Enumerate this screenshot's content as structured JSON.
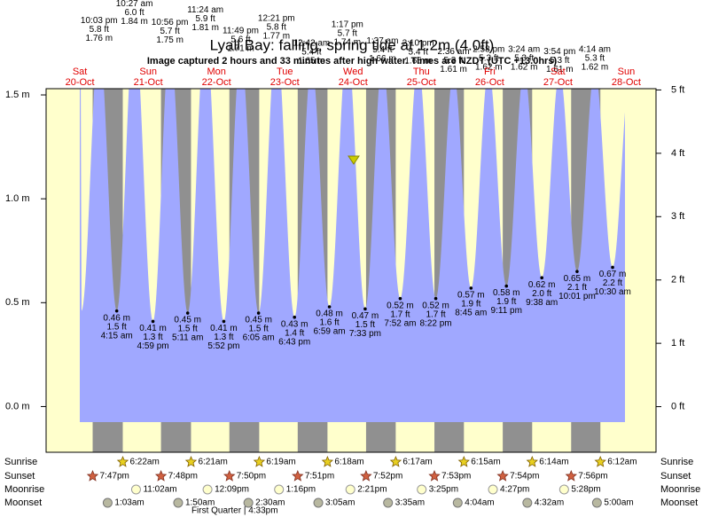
{
  "chart_data": {
    "type": "tide",
    "title": "Lyall Bay: falling, spring tide at 1.2m (4.0ft)",
    "subtitle": "Image captured 2 hours and 33 minutes after high water. Times are NZDT (UTC +13.0hrs)",
    "ylim": [
      -0.22,
      1.53
    ],
    "yticks": [
      {
        "value": 0,
        "label": "0.0 m"
      },
      {
        "value": 0.5,
        "label": "0.5 m"
      },
      {
        "value": 1,
        "label": "1.0 m"
      },
      {
        "value": 1.5,
        "label": "1.5 m"
      }
    ],
    "y2lim": [
      -0.72,
      5.02
    ],
    "y2ticks": [
      {
        "value": 0,
        "label": "0 ft"
      },
      {
        "value": 1,
        "label": "1 ft"
      },
      {
        "value": 2,
        "label": "2 ft"
      },
      {
        "value": 3,
        "label": "3 ft"
      },
      {
        "value": 4,
        "label": "4 ft"
      },
      {
        "value": 5,
        "label": "5 ft"
      }
    ],
    "row_labels": {
      "sunrise": "Sunrise",
      "sunset": "Sunset",
      "moonrise": "Moonrise",
      "moonset": "Moonset"
    },
    "days": [
      {
        "weekday": "Sat",
        "date": "20-Oct",
        "tides": [
          {
            "time": "10:03 pm",
            "m": 1.76,
            "m_label": "1.76 m",
            "ft_label": "5.8 ft"
          }
        ],
        "sunset": "7:47pm"
      },
      {
        "weekday": "Sun",
        "date": "21-Oct",
        "tides": [
          {
            "time": "4:15 am",
            "m": 0.46,
            "m_label": "0.46 m",
            "ft_label": "1.5 ft"
          },
          {
            "time": "10:27 am",
            "m": 1.84,
            "m_label": "1.84 m",
            "ft_label": "6.0 ft"
          },
          {
            "time": "4:59 pm",
            "m": 0.41,
            "m_label": "0.41 m",
            "ft_label": "1.3 ft"
          },
          {
            "time": "10:56 pm",
            "m": 1.75,
            "m_label": "1.75 m",
            "ft_label": "5.7 ft"
          }
        ],
        "sunrise": "6:22am",
        "sunset": "7:48pm",
        "moonrise": "11:02am",
        "moonset": "1:03am"
      },
      {
        "weekday": "Mon",
        "date": "22-Oct",
        "tides": [
          {
            "time": "5:11 am",
            "m": 0.45,
            "m_label": "0.45 m",
            "ft_label": "1.5 ft"
          },
          {
            "time": "11:24 am",
            "m": 1.81,
            "m_label": "1.81 m",
            "ft_label": "5.9 ft"
          },
          {
            "time": "5:52 pm",
            "m": 0.41,
            "m_label": "0.41 m",
            "ft_label": "1.3 ft"
          },
          {
            "time": "11:49 pm",
            "m": 1.71,
            "m_label": "1.71 m",
            "ft_label": "5.6 ft"
          }
        ],
        "sunrise": "6:21am",
        "sunset": "7:50pm",
        "moonrise": "12:09pm",
        "moonset": "1:50am",
        "moon_phase": "First Quarter | 4:33pm"
      },
      {
        "weekday": "Tue",
        "date": "23-Oct",
        "tides": [
          {
            "time": "6:05 am",
            "m": 0.45,
            "m_label": "0.45 m",
            "ft_label": "1.5 ft"
          },
          {
            "time": "12:21 pm",
            "m": 1.77,
            "m_label": "1.77 m",
            "ft_label": "5.8 ft"
          },
          {
            "time": "6:43 pm",
            "m": 0.43,
            "m_label": "0.43 m",
            "ft_label": "1.4 ft"
          }
        ],
        "sunrise": "6:19am",
        "sunset": "7:51pm",
        "moonrise": "1:16pm",
        "moonset": "2:30am"
      },
      {
        "weekday": "Wed",
        "date": "24-Oct",
        "tides": [
          {
            "time": "12:42 am",
            "m": 1.65,
            "m_label": "1.65 m",
            "ft_label": "5.4 ft"
          },
          {
            "time": "6:59 am",
            "m": 0.48,
            "m_label": "0.48 m",
            "ft_label": "1.6 ft"
          },
          {
            "time": "1:17 pm",
            "m": 1.74,
            "m_label": "1.74 m",
            "ft_label": "5.7 ft"
          },
          {
            "time": "7:33 pm",
            "m": 0.47,
            "m_label": "0.47 m",
            "ft_label": "1.5 ft"
          }
        ],
        "sunrise": "6:18am",
        "sunset": "7:52pm",
        "moonrise": "2:21pm",
        "moonset": "3:05am"
      },
      {
        "weekday": "Thu",
        "date": "25-Oct",
        "tides": [
          {
            "time": "1:37 am",
            "m": 1.66,
            "m_label": "1.66 m",
            "ft_label": "5.4 ft"
          },
          {
            "time": "7:52 am",
            "m": 0.52,
            "m_label": "0.52 m",
            "ft_label": "1.7 ft"
          },
          {
            "time": "2:10 pm",
            "m": 1.65,
            "m_label": "1.65 m",
            "ft_label": "5.4 ft"
          },
          {
            "time": "8:22 pm",
            "m": 0.52,
            "m_label": "0.52 m",
            "ft_label": "1.7 ft"
          }
        ],
        "sunrise": "6:17am",
        "sunset": "7:53pm",
        "moonrise": "3:25pm",
        "moonset": "3:35am"
      },
      {
        "weekday": "Fri",
        "date": "26-Oct",
        "tides": [
          {
            "time": "2:36 am",
            "m": 1.61,
            "m_label": "1.61 m",
            "ft_label": "5.3 ft"
          },
          {
            "time": "8:45 am",
            "m": 0.57,
            "m_label": "0.57 m",
            "ft_label": "1.9 ft"
          },
          {
            "time": "2:58 pm",
            "m": 1.62,
            "m_label": "1.62 m",
            "ft_label": "5.3 ft"
          },
          {
            "time": "9:11 pm",
            "m": 0.58,
            "m_label": "0.58 m",
            "ft_label": "1.9 ft"
          }
        ],
        "sunrise": "6:15am",
        "sunset": "7:54pm",
        "moonrise": "4:27pm",
        "moonset": "4:04am"
      },
      {
        "weekday": "Sat",
        "date": "27-Oct",
        "tides": [
          {
            "time": "3:24 am",
            "m": 1.62,
            "m_label": "1.62 m",
            "ft_label": "5.3 ft"
          },
          {
            "time": "9:38 am",
            "m": 0.62,
            "m_label": "0.62 m",
            "ft_label": "2.0 ft"
          },
          {
            "time": "3:54 pm",
            "m": 1.61,
            "m_label": "1.61 m",
            "ft_label": "5.3 ft"
          },
          {
            "time": "10:01 pm",
            "m": 0.65,
            "m_label": "0.65 m",
            "ft_label": "2.1 ft"
          }
        ],
        "sunrise": "6:14am",
        "sunset": "7:56pm",
        "moonrise": "5:28pm",
        "moonset": "4:32am"
      },
      {
        "weekday": "Sun",
        "date": "28-Oct",
        "tides": [
          {
            "time": "4:14 am",
            "m": 1.62,
            "m_label": "1.62 m",
            "ft_label": "5.3 ft"
          },
          {
            "time": "10:30 am",
            "m": 0.67,
            "m_label": "0.67 m",
            "ft_label": "2.2 ft"
          }
        ],
        "sunrise": "6:12am",
        "moonset": "5:00am"
      }
    ]
  }
}
